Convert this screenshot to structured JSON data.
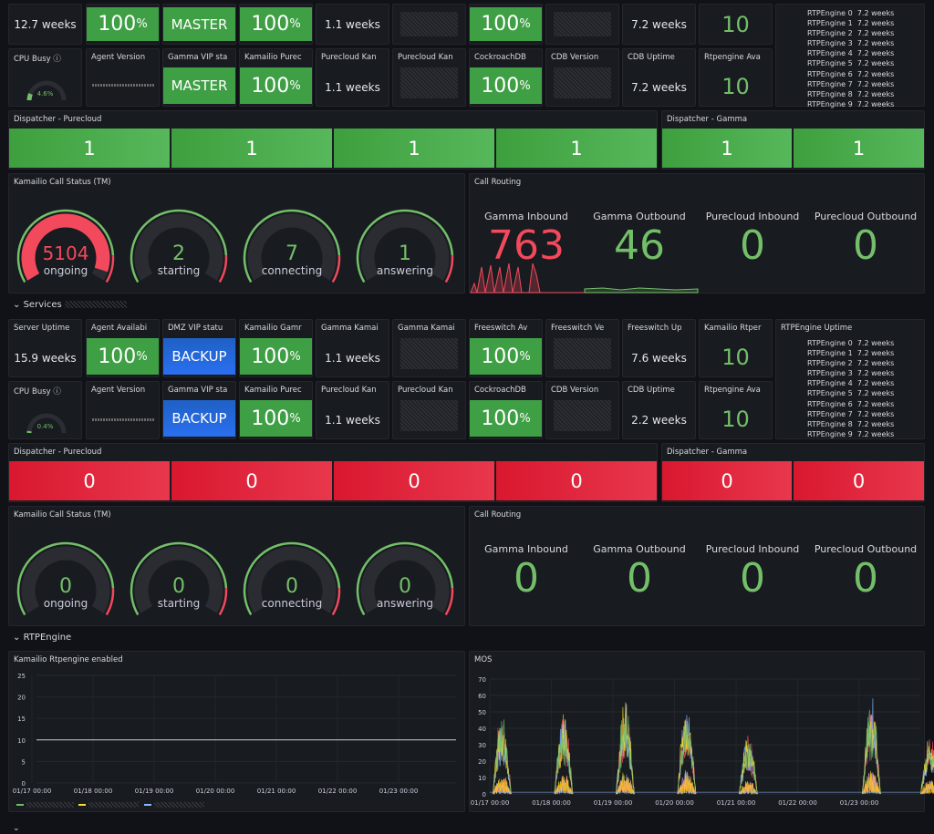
{
  "top": {
    "row1": {
      "uptime": "12.7 weeks",
      "agent_avail": "100",
      "dmz_vip": "MASTER",
      "kamailio_gamma": "100",
      "gamma_kam": "1.1 weeks",
      "freeswitch_avail": "100",
      "freeswitch_up": "7.2 weeks",
      "kamailio_rtpe": "10"
    },
    "row2": {
      "cpu_title": "CPU Busy",
      "cpu_value": "4.6%",
      "cpu_level": 0.046,
      "agent_version_title": "Agent Version",
      "gamma_vip_title": "Gamma VIP sta",
      "gamma_vip": "MASTER",
      "kam_pure_title": "Kamailio Purec",
      "kam_pure": "100",
      "pure_kan_title": "Purecloud Kan",
      "pure_kan": "1.1 weeks",
      "pure_kan2_title": "Purecloud Kan",
      "crdb_title": "CockroachDB",
      "crdb": "100",
      "cdb_version_title": "CDB Version",
      "cdb_uptime_title": "CDB Uptime",
      "cdb_uptime": "7.2 weeks",
      "rtp_avail_title": "Rtpengine Ava",
      "rtp_avail": "10"
    },
    "rtp_list": [
      "RTPEngine 0  7.2 weeks",
      "RTPEngine 1  7.2 weeks",
      "RTPEngine 2  7.2 weeks",
      "RTPEngine 3  7.2 weeks",
      "RTPEngine 4  7.2 weeks",
      "RTPEngine 5  7.2 weeks",
      "RTPEngine 6  7.2 weeks",
      "RTPEngine 7  7.2 weeks",
      "RTPEngine 8  7.2 weeks",
      "RTPEngine 9  7.2 weeks"
    ],
    "dispatcher_pure_title": "Dispatcher - Purecloud",
    "dispatcher_gamma_title": "Dispatcher - Gamma",
    "dispatcher_pure": [
      "1",
      "1",
      "1",
      "1"
    ],
    "dispatcher_gamma": [
      "1",
      "1"
    ],
    "call_status_title": "Kamailio Call Status (TM)",
    "gauges": [
      {
        "value": "5104",
        "label": "ongoing",
        "level": 0.95,
        "color": "#f2495c"
      },
      {
        "value": "2",
        "label": "starting",
        "level": 0.0,
        "color": "#73bf69"
      },
      {
        "value": "7",
        "label": "connecting",
        "level": 0.0,
        "color": "#73bf69"
      },
      {
        "value": "1",
        "label": "answering",
        "level": 0.0,
        "color": "#73bf69"
      }
    ],
    "routing_title": "Call Routing",
    "routing": [
      {
        "label": "Gamma Inbound",
        "value": "763",
        "color": "#f2495c"
      },
      {
        "label": "Gamma Outbound",
        "value": "46",
        "color": "#73bf69"
      },
      {
        "label": "Purecloud Inbound",
        "value": "0",
        "color": "#73bf69"
      },
      {
        "label": "Purecloud Outbound",
        "value": "0",
        "color": "#73bf69"
      }
    ]
  },
  "services": {
    "section_label": "Services",
    "row1": {
      "uptime_title": "Server Uptime",
      "uptime": "15.9 weeks",
      "agent_avail_title": "Agent Availabi",
      "agent_avail": "100",
      "dmz_title": "DMZ VIP statu",
      "dmz": "BACKUP",
      "kam_gamma_title": "Kamailio Gamr",
      "kam_gamma": "100",
      "gamma_kam_title": "Gamma Kamai",
      "gamma_kam": "1.1 weeks",
      "gamma_kam2_title": "Gamma Kamai",
      "fs_avail_title": "Freeswitch Av",
      "fs_avail": "100",
      "fs_ver_title": "Freeswitch Ve",
      "fs_up_title": "Freeswitch Up",
      "fs_up": "7.6 weeks",
      "kam_rtpe_title": "Kamailio Rtper",
      "kam_rtpe": "10",
      "rtp_uptime_title": "RTPEngine Uptime"
    },
    "row2": {
      "cpu_title": "CPU Busy",
      "cpu_value": "0.4%",
      "cpu_level": 0.004,
      "agent_version_title": "Agent Version",
      "gamma_vip_title": "Gamma VIP sta",
      "gamma_vip": "BACKUP",
      "kam_pure_title": "Kamailio Purec",
      "kam_pure": "100",
      "pure_kan_title": "Purecloud Kan",
      "pure_kan": "1.1 weeks",
      "pure_kan2_title": "Purecloud Kan",
      "crdb_title": "CockroachDB",
      "crdb": "100",
      "cdb_version_title": "CDB Version",
      "cdb_uptime_title": "CDB Uptime",
      "cdb_uptime": "2.2 weeks",
      "rtp_avail_title": "Rtpengine Ava",
      "rtp_avail": "10"
    },
    "rtp_list": [
      "RTPEngine 0  7.2 weeks",
      "RTPEngine 1  7.2 weeks",
      "RTPEngine 2  7.2 weeks",
      "RTPEngine 3  7.2 weeks",
      "RTPEngine 4  7.2 weeks",
      "RTPEngine 5  7.2 weeks",
      "RTPEngine 6  7.2 weeks",
      "RTPEngine 7  7.2 weeks",
      "RTPEngine 8  7.2 weeks",
      "RTPEngine 9  7.2 weeks"
    ],
    "dispatcher_pure_title": "Dispatcher - Purecloud",
    "dispatcher_gamma_title": "Dispatcher - Gamma",
    "dispatcher_pure": [
      "0",
      "0",
      "0",
      "0"
    ],
    "dispatcher_gamma": [
      "0",
      "0"
    ],
    "call_status_title": "Kamailio Call Status (TM)",
    "gauges": [
      {
        "value": "0",
        "label": "ongoing",
        "level": 0.0,
        "color": "#73bf69"
      },
      {
        "value": "0",
        "label": "starting",
        "level": 0.0,
        "color": "#73bf69"
      },
      {
        "value": "0",
        "label": "connecting",
        "level": 0.0,
        "color": "#73bf69"
      },
      {
        "value": "0",
        "label": "answering",
        "level": 0.0,
        "color": "#73bf69"
      }
    ],
    "routing_title": "Call Routing",
    "routing": [
      {
        "label": "Gamma Inbound",
        "value": "0",
        "color": "#73bf69"
      },
      {
        "label": "Gamma Outbound",
        "value": "0",
        "color": "#73bf69"
      },
      {
        "label": "Purecloud Inbound",
        "value": "0",
        "color": "#73bf69"
      },
      {
        "label": "Purecloud Outbound",
        "value": "0",
        "color": "#73bf69"
      }
    ]
  },
  "rtpengine": {
    "section_label": "RTPEngine",
    "left_title": "Kamailio Rtpengine enabled",
    "right_title": "MOS",
    "percent_unit": "%"
  },
  "chart_data": [
    {
      "type": "line",
      "title": "Kamailio Rtpengine enabled",
      "x": [
        "01/17 00:00",
        "01/18 00:00",
        "01/19 00:00",
        "01/20 00:00",
        "01/21 00:00",
        "01/22 00:00",
        "01/23 00:00"
      ],
      "yticks": [
        0,
        5,
        10,
        15,
        20,
        25
      ],
      "ylim": [
        0,
        25
      ],
      "series": [
        {
          "values": [
            10,
            10,
            10,
            10,
            10,
            10,
            10
          ],
          "color": "#cccccc"
        }
      ]
    },
    {
      "type": "line",
      "title": "MOS",
      "x": [
        "01/17 00:00",
        "01/18 00:00",
        "01/19 00:00",
        "01/20 00:00",
        "01/21 00:00",
        "01/22 00:00",
        "01/23 00:00"
      ],
      "yticks": [
        0,
        10,
        20,
        30,
        40,
        50,
        60,
        70
      ],
      "ylim": [
        0,
        70
      ],
      "bursts": [
        {
          "day": 0.05,
          "peak": 55
        },
        {
          "day": 1.05,
          "peak": 55
        },
        {
          "day": 2.05,
          "peak": 62
        },
        {
          "day": 3.05,
          "peak": 62
        },
        {
          "day": 4.05,
          "peak": 40
        },
        {
          "day": 6.05,
          "peak": 65
        },
        {
          "day": 7.0,
          "peak": 40
        }
      ]
    }
  ]
}
